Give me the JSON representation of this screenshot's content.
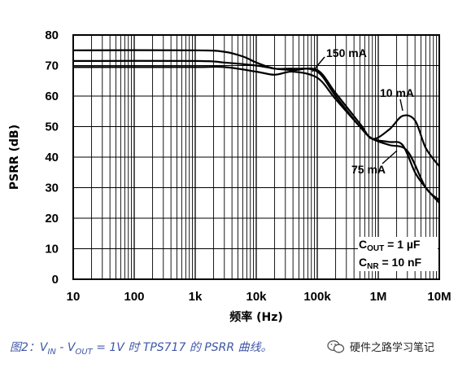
{
  "chart_data": {
    "type": "line",
    "xscale": "log",
    "xlim": [
      10,
      10000000
    ],
    "ylim": [
      0,
      80
    ],
    "xticks": [
      "10",
      "100",
      "1k",
      "10k",
      "100k",
      "1M",
      "10M"
    ],
    "yticks": [
      "0",
      "10",
      "20",
      "30",
      "40",
      "50",
      "60",
      "70",
      "80"
    ],
    "xlabel": "频率 (Hz)",
    "ylabel": "PSRR (dB)",
    "grid": true,
    "series": [
      {
        "name": "150 mA",
        "x": [
          10,
          1000,
          3000,
          6000,
          10000,
          20000,
          40000,
          100000,
          200000,
          500000,
          800000,
          1500000,
          3000000,
          6000000,
          10000000
        ],
        "values": [
          75,
          75,
          74.5,
          73,
          71,
          69,
          69,
          68,
          60,
          50,
          46,
          44,
          42,
          30,
          26
        ]
      },
      {
        "name": "10 mA",
        "x": [
          10,
          1000,
          3000,
          10000,
          20000,
          40000,
          100000,
          200000,
          500000,
          800000,
          1500000,
          2500000,
          4000000,
          6000000,
          10000000
        ],
        "values": [
          71.5,
          71.5,
          71,
          70,
          69,
          68.5,
          68.5,
          61,
          51,
          46,
          49,
          53.5,
          52,
          43,
          37
        ]
      },
      {
        "name": "75 mA",
        "x": [
          10,
          1000,
          3000,
          10000,
          20000,
          40000,
          100000,
          200000,
          500000,
          800000,
          1500000,
          2500000,
          4000000,
          6000000,
          10000000
        ],
        "values": [
          69.5,
          69.5,
          69.5,
          68,
          67,
          68,
          66,
          59,
          50,
          46,
          45,
          44,
          35,
          30,
          25
        ]
      }
    ],
    "annotations": [
      "150 mA",
      "10 mA",
      "75 mA"
    ],
    "conditions": {
      "line1_main": "C",
      "line1_sub": "OUT",
      "line1_rest": " = 1 µF",
      "line2_main": "C",
      "line2_sub": "NR",
      "line2_rest": " = 10 nF"
    }
  },
  "caption": {
    "prefix": "图2：V",
    "sub1": "IN",
    "mid": " - V",
    "sub2": "OUT",
    "suffix": " = 1V 时 TPS717 的 PSRR 曲线。"
  },
  "watermark": {
    "text": "硬件之路学习笔记",
    "icon": "wechat-icon"
  },
  "colors": {
    "line": "#000000",
    "grid": "#000000",
    "caption": "#3f57a6"
  }
}
